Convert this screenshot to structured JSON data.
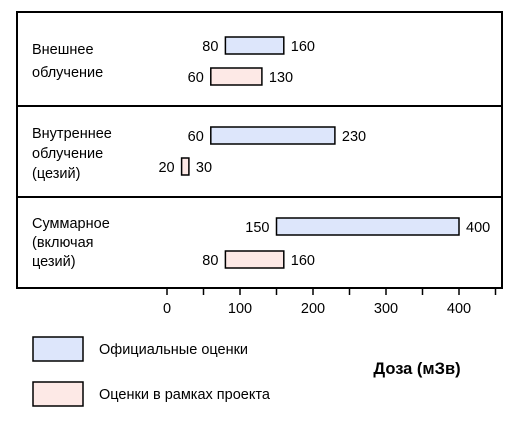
{
  "chart_data": {
    "type": "range-bar",
    "xlabel": "Доза (мЗв)",
    "xlim": [
      0,
      450
    ],
    "xticks": [
      0,
      100,
      200,
      300,
      400
    ],
    "series": [
      {
        "name": "Официальные оценки",
        "color": "#dde6fb"
      },
      {
        "name": "Оценки в рамках проекта",
        "color": "#fde9e6"
      }
    ],
    "groups": [
      {
        "label_lines": [
          "Внешнее",
          "облучение"
        ],
        "ranges": [
          {
            "series": 0,
            "low": 80,
            "high": 160
          },
          {
            "series": 1,
            "low": 60,
            "high": 130
          }
        ]
      },
      {
        "label_lines": [
          "Внутреннее",
          "облучение",
          "(цезий)"
        ],
        "ranges": [
          {
            "series": 0,
            "low": 60,
            "high": 230
          },
          {
            "series": 1,
            "low": 20,
            "high": 30
          }
        ]
      },
      {
        "label_lines": [
          "Суммарное",
          "(включая",
          "цезий)"
        ],
        "ranges": [
          {
            "series": 0,
            "low": 150,
            "high": 400
          },
          {
            "series": 1,
            "low": 80,
            "high": 160
          }
        ]
      }
    ]
  }
}
